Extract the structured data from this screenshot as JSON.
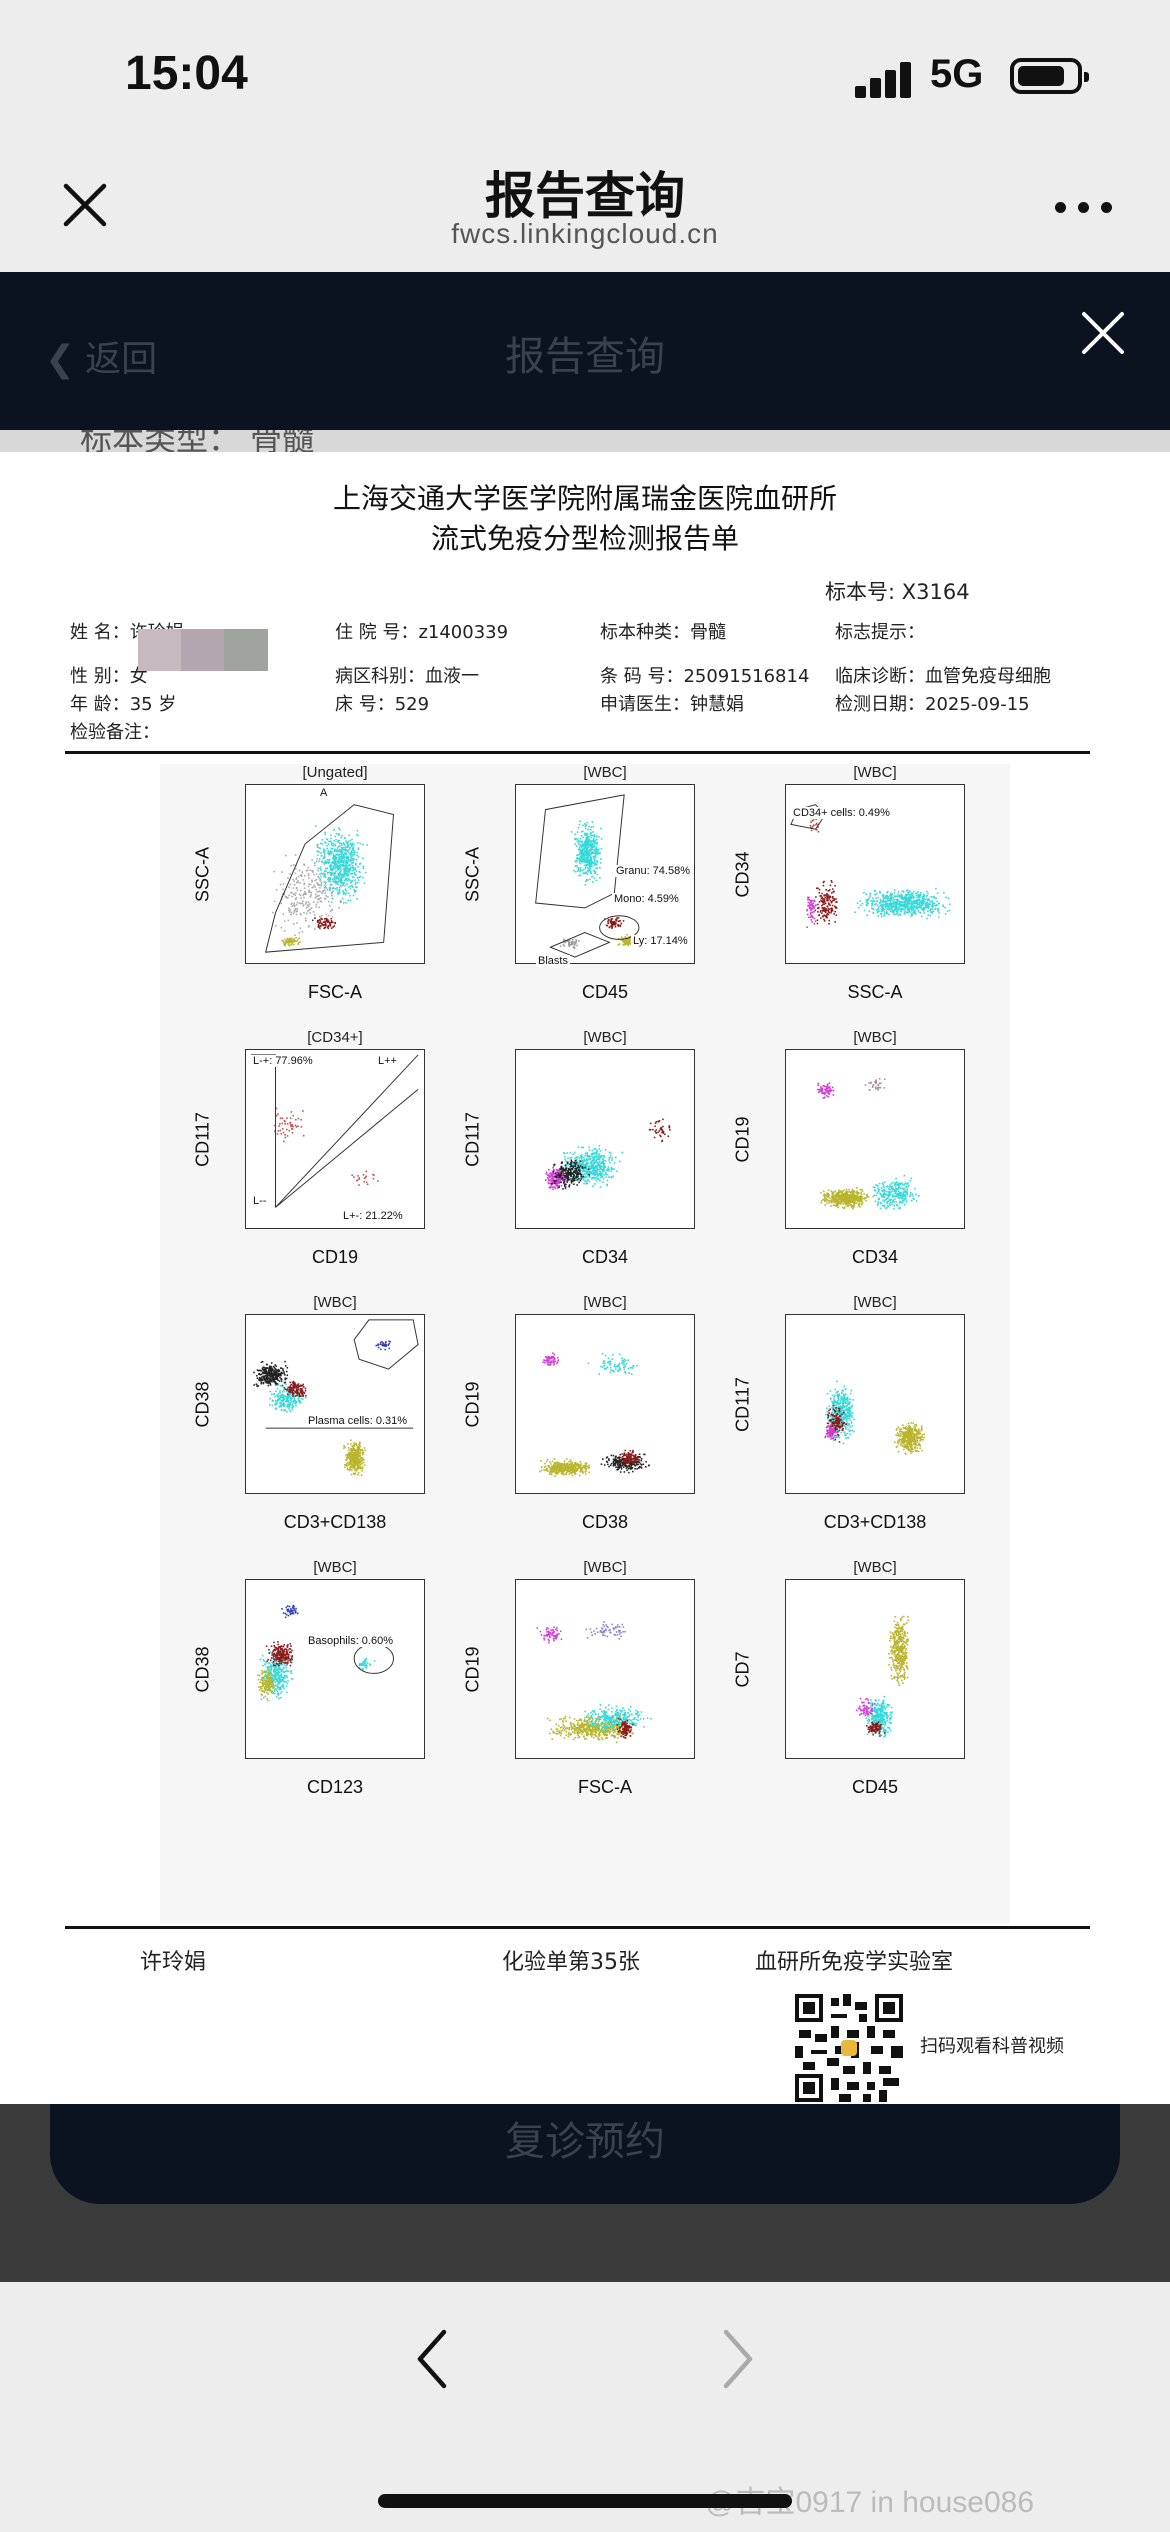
{
  "status": {
    "time": "15:04",
    "network": "5G"
  },
  "nav": {
    "title": "报告查询",
    "url": "fwcs.linkingcloud.cn"
  },
  "page": {
    "back_label": "返回",
    "title": "报告查询",
    "behind_text": "标本类型： 骨髓",
    "followup_button": "复诊预约"
  },
  "report": {
    "hospital": "上海交通大学医学院附属瑞金医院血研所",
    "title": "流式免疫分型检测报告单",
    "specimen_no": "标本号:  X3164",
    "fields": [
      "姓      名：许玲娟",
      "住 院 号：z1400339",
      "标本种类：骨髓",
      "标志提示：",
      "性      别：女",
      "病区科别：血液一",
      "条 码 号：25091516814",
      "临床诊断：血管免疫母细胞",
      "年      龄：35 岁",
      "床      号：529",
      "申请医生：钟慧娟",
      "检测日期：2025-09-15",
      "检验备注："
    ],
    "footer": {
      "patient": "许玲娟",
      "sheet": "化验单第35张",
      "lab": "血研所免疫学实验室",
      "scan": "扫码观看科普视频"
    }
  },
  "plots": [
    {
      "title": "[Ungated]",
      "x": "FSC-A",
      "y": "SSC-A",
      "gates": [
        "A"
      ]
    },
    {
      "title": "[WBC]",
      "x": "CD45",
      "y": "SSC-A",
      "gates": [
        "Granu: 74.58%",
        "Mono: 4.59%",
        "Ly: 17.14%",
        "Blasts"
      ]
    },
    {
      "title": "[WBC]",
      "x": "SSC-A",
      "y": "CD34",
      "gates": [
        "CD34+ cells: 0.49%"
      ]
    },
    {
      "title": "[CD34+]",
      "x": "CD19",
      "y": "CD117",
      "gates": [
        "L-+: 77.96%",
        "L++",
        "L--",
        "L+-: 21.22%"
      ]
    },
    {
      "title": "[WBC]",
      "x": "CD34",
      "y": "CD117",
      "gates": []
    },
    {
      "title": "[WBC]",
      "x": "CD34",
      "y": "CD19",
      "gates": []
    },
    {
      "title": "[WBC]",
      "x": "CD3+CD138",
      "y": "CD38",
      "gates": [
        "Plasma cells: 0.31%"
      ]
    },
    {
      "title": "[WBC]",
      "x": "CD38",
      "y": "CD19",
      "gates": []
    },
    {
      "title": "[WBC]",
      "x": "CD3+CD138",
      "y": "CD117",
      "gates": []
    },
    {
      "title": "[WBC]",
      "x": "CD123",
      "y": "CD38",
      "gates": [
        "Basophils: 0.60%"
      ]
    },
    {
      "title": "[WBC]",
      "x": "FSC-A",
      "y": "CD19",
      "gates": []
    },
    {
      "title": "[WBC]",
      "x": "CD45",
      "y": "CD7",
      "gates": []
    }
  ],
  "watermark": "@吉宝0917 in house086",
  "colors": {
    "header_bg": "#0b1321",
    "cyan": "#35d8d8",
    "olive": "#b9b52e",
    "darkred": "#8b1a1a",
    "magenta": "#d63bd6",
    "blue": "#2a3bb8"
  }
}
